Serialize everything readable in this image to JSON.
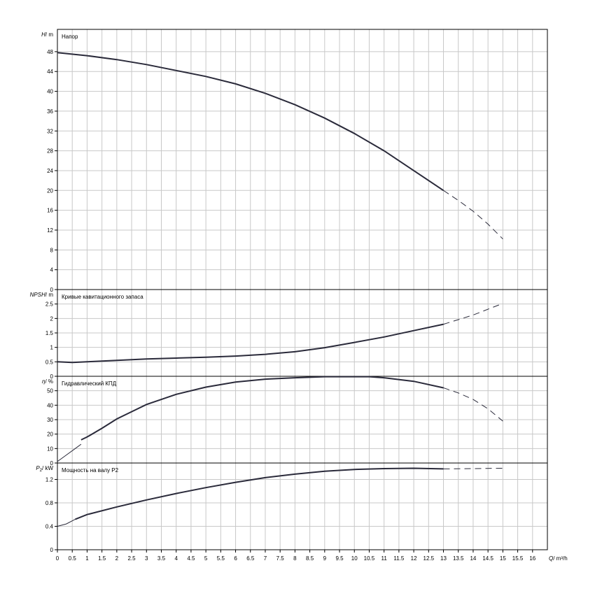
{
  "chart_data": {
    "type": "line",
    "x_axis": {
      "var": "Q",
      "unit": "m³/h",
      "range": [
        0,
        16.5
      ],
      "tick_step": 0.5,
      "tick_labels": [
        "0",
        "0.5",
        "1",
        "1.5",
        "2",
        "2.5",
        "3",
        "3.5",
        "4",
        "4.5",
        "5",
        "5.5",
        "6",
        "6.5",
        "7",
        "7.5",
        "8",
        "8.5",
        "9",
        "9.5",
        "10",
        "10.5",
        "11",
        "11.5",
        "12",
        "12.5",
        "13",
        "13.5",
        "14",
        "14.5",
        "15",
        "15.5",
        "16"
      ]
    },
    "panels": [
      {
        "id": "head",
        "title": "Напор",
        "y_var": "H",
        "y_unit": "m",
        "ylim": [
          0,
          52.5
        ],
        "y_ticks": [
          0,
          4,
          8,
          12,
          16,
          20,
          24,
          28,
          32,
          36,
          40,
          44,
          48
        ],
        "y_tick_labels": [
          "0",
          "4",
          "8",
          "12",
          "16",
          "20",
          "24",
          "28",
          "32",
          "36",
          "40",
          "44",
          "48"
        ],
        "solid": [
          [
            0,
            47.8
          ],
          [
            1,
            47.2
          ],
          [
            2,
            46.4
          ],
          [
            3,
            45.4
          ],
          [
            4,
            44.2
          ],
          [
            5,
            43.0
          ],
          [
            6,
            41.5
          ],
          [
            7,
            39.6
          ],
          [
            8,
            37.3
          ],
          [
            9,
            34.6
          ],
          [
            10,
            31.5
          ],
          [
            11,
            28.0
          ],
          [
            12,
            24.0
          ],
          [
            13,
            20.0
          ]
        ],
        "dashed": [
          [
            13,
            20.0
          ],
          [
            13.5,
            18.0
          ],
          [
            14,
            15.8
          ],
          [
            14.5,
            13.2
          ],
          [
            15,
            10.2
          ]
        ]
      },
      {
        "id": "npsh",
        "title": "Кривые кавитационного запаса",
        "y_var": "NPSH",
        "y_unit": "m",
        "ylim": [
          0,
          3
        ],
        "y_ticks": [
          0,
          0.5,
          1,
          1.5,
          2,
          2.5
        ],
        "y_tick_labels": [
          "0",
          "0.5",
          "1",
          "1.5",
          "2",
          "2.5"
        ],
        "solid": [
          [
            0,
            0.5
          ],
          [
            0.5,
            0.48
          ],
          [
            1,
            0.5
          ],
          [
            2,
            0.55
          ],
          [
            3,
            0.6
          ],
          [
            4,
            0.63
          ],
          [
            5,
            0.66
          ],
          [
            6,
            0.7
          ],
          [
            7,
            0.76
          ],
          [
            8,
            0.85
          ],
          [
            9,
            0.99
          ],
          [
            10,
            1.17
          ],
          [
            11,
            1.36
          ],
          [
            12,
            1.58
          ],
          [
            13,
            1.8
          ]
        ],
        "dashed": [
          [
            13,
            1.8
          ],
          [
            14,
            2.12
          ],
          [
            15,
            2.52
          ]
        ]
      },
      {
        "id": "eff",
        "title": "Гидравлический КПД",
        "y_var": "η",
        "y_unit": "%",
        "ylim": [
          0,
          60
        ],
        "y_ticks": [
          0,
          10,
          20,
          30,
          40,
          50
        ],
        "y_tick_labels": [
          "0",
          "10",
          "20",
          "30",
          "40",
          "50"
        ],
        "solid_start": [
          [
            0,
            1
          ],
          [
            0.3,
            5.5
          ],
          [
            0.6,
            10
          ],
          [
            0.8,
            13
          ]
        ],
        "solid": [
          [
            0.8,
            16
          ],
          [
            1,
            18
          ],
          [
            1.5,
            24
          ],
          [
            2,
            30.5
          ],
          [
            2.5,
            35.5
          ],
          [
            3,
            40.5
          ],
          [
            3.5,
            44
          ],
          [
            4,
            47.5
          ],
          [
            5,
            52.5
          ],
          [
            6,
            56
          ],
          [
            7,
            58
          ],
          [
            8,
            59
          ],
          [
            9,
            59.7
          ],
          [
            10,
            59.7
          ],
          [
            10.5,
            59.7
          ],
          [
            11,
            59
          ],
          [
            12,
            56.5
          ],
          [
            13,
            52
          ]
        ],
        "dashed": [
          [
            13,
            52
          ],
          [
            13.5,
            48.5
          ],
          [
            14,
            44
          ],
          [
            14.5,
            37.5
          ],
          [
            15,
            29
          ]
        ]
      },
      {
        "id": "power",
        "title": "Мощность на валу P2",
        "y_var": "P",
        "y_var_sub": "2",
        "y_unit": "kW",
        "ylim": [
          0,
          1.48
        ],
        "y_ticks": [
          0,
          0.4,
          0.8,
          1.2
        ],
        "y_tick_labels": [
          "0",
          "0.4",
          "0.8",
          "1.2"
        ],
        "solid_start": [
          [
            0,
            0.4
          ],
          [
            0.3,
            0.44
          ],
          [
            0.6,
            0.52
          ]
        ],
        "solid": [
          [
            0.6,
            0.52
          ],
          [
            1,
            0.6
          ],
          [
            2,
            0.73
          ],
          [
            3,
            0.85
          ],
          [
            4,
            0.96
          ],
          [
            5,
            1.06
          ],
          [
            6,
            1.15
          ],
          [
            7,
            1.23
          ],
          [
            8,
            1.29
          ],
          [
            9,
            1.34
          ],
          [
            10,
            1.37
          ],
          [
            11,
            1.385
          ],
          [
            12,
            1.39
          ],
          [
            13,
            1.38
          ]
        ],
        "dashed": [
          [
            13,
            1.38
          ],
          [
            14,
            1.385
          ],
          [
            15,
            1.39
          ]
        ]
      }
    ],
    "grid": true
  }
}
